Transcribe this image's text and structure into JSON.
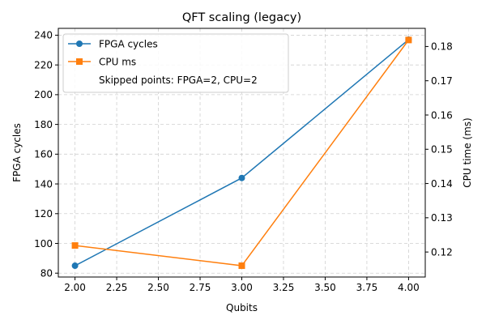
{
  "chart_data": {
    "type": "line",
    "title": "QFT scaling (legacy)",
    "xlabel": "Qubits",
    "ylabel_left": "FPGA cycles",
    "ylabel_right": "CPU time (ms)",
    "xlim": [
      1.9,
      4.1
    ],
    "ylim_left": [
      77.4,
      244.6
    ],
    "ylim_right": [
      0.1127,
      0.1853
    ],
    "x_ticks": [
      2.0,
      2.25,
      2.5,
      2.75,
      3.0,
      3.25,
      3.5,
      3.75,
      4.0
    ],
    "x_tick_labels": [
      "2.00",
      "2.25",
      "2.50",
      "2.75",
      "3.00",
      "3.25",
      "3.50",
      "3.75",
      "4.00"
    ],
    "y_left_ticks": [
      80,
      100,
      120,
      140,
      160,
      180,
      200,
      220,
      240
    ],
    "y_left_tick_labels": [
      "80",
      "100",
      "120",
      "140",
      "160",
      "180",
      "200",
      "220",
      "240"
    ],
    "y_right_ticks": [
      0.12,
      0.13,
      0.14,
      0.15,
      0.16,
      0.17,
      0.18
    ],
    "y_right_tick_labels": [
      "0.12",
      "0.13",
      "0.14",
      "0.15",
      "0.16",
      "0.17",
      "0.18"
    ],
    "grid": true,
    "legend_position": "upper-left",
    "series": [
      {
        "name": "FPGA cycles",
        "axis": "left",
        "color": "#1f77b4",
        "marker": "circle",
        "x": [
          2,
          3,
          4
        ],
        "values": [
          85,
          144,
          237
        ]
      },
      {
        "name": "CPU ms",
        "axis": "right",
        "color": "#ff7f0e",
        "marker": "square",
        "x": [
          2,
          3,
          4
        ],
        "values": [
          0.1219,
          0.116,
          0.1819
        ]
      }
    ],
    "annotation": "Skipped points: FPGA=2, CPU=2"
  }
}
